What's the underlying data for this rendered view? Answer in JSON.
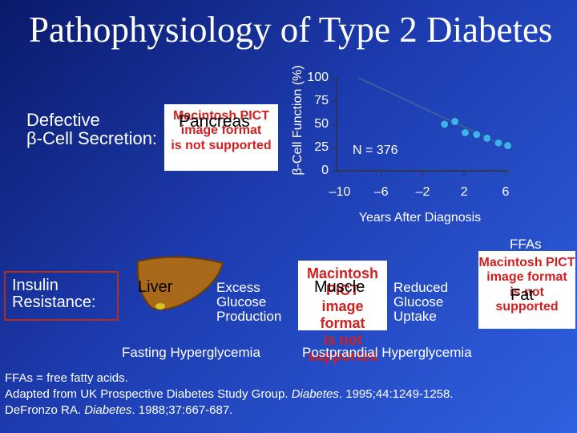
{
  "slide": {
    "title": "Pathophysiology of Type 2 Diabetes",
    "defective": [
      "Defective",
      "β-Cell Secretion:"
    ],
    "pancreas": "Pancreas",
    "placeholder": [
      "Macintosh PICT",
      "image format",
      "is not supported"
    ],
    "insulin": [
      "Insulin",
      "Resistance:"
    ],
    "liver": "Liver",
    "excess": [
      "Excess",
      "Glucose",
      "Production"
    ],
    "muscle": "Muscle",
    "reduced": [
      "Reduced",
      "Glucose",
      "Uptake"
    ],
    "ffas": "FFAs",
    "fat": "Fat",
    "fasting": "Fasting Hyperglycemia",
    "postprandial": "Postprandial Hyperglycemia",
    "footnotes": [
      [
        "FFAs = free fatty acids."
      ],
      [
        "Adapted from UK Prospective Diabetes Study Group. ",
        "Diabetes",
        ". 1995;44:1249-1258."
      ],
      [
        "DeFronzo RA. ",
        "Diabetes",
        ". 1988;37:667-687."
      ]
    ]
  },
  "chart_data": {
    "type": "line",
    "ylabel": "β-Cell Function (%)",
    "xlabel": "Years After Diagnosis",
    "annotation": "N = 376",
    "xlim": [
      -10,
      6
    ],
    "ylim": [
      0,
      100
    ],
    "xticks": [
      {
        "value": -10,
        "label": "–10"
      },
      {
        "value": -6,
        "label": "–6"
      },
      {
        "value": -2,
        "label": "–2"
      },
      2,
      6
    ],
    "yticks": [
      0,
      25,
      50,
      75,
      100
    ],
    "series": [
      {
        "style": "line",
        "color": "#3b5f9a",
        "x": [
          -8.2,
          6.4
        ],
        "values": [
          100,
          24
        ]
      },
      {
        "style": "points",
        "color": "#3fb0f0",
        "x": [
          0.1,
          1.1,
          2.1,
          3.2,
          4.2,
          5.3,
          6.2
        ],
        "values": [
          50,
          53,
          41,
          39,
          35,
          30,
          27
        ]
      }
    ]
  }
}
